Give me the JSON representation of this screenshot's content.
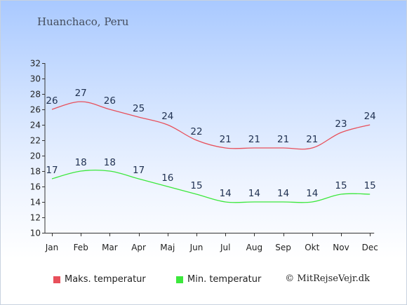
{
  "location": "Huanchaco, Peru",
  "credit": "© MitRejseVejr.dk",
  "colors": {
    "max": "#e8505b",
    "min": "#3ce83c"
  },
  "chart_data": {
    "type": "line",
    "categories": [
      "Jan",
      "Feb",
      "Mar",
      "Apr",
      "Maj",
      "Jun",
      "Jul",
      "Aug",
      "Sep",
      "Okt",
      "Nov",
      "Dec"
    ],
    "series": [
      {
        "name": "Maks. temperatur",
        "values": [
          26,
          27,
          26,
          25,
          24,
          22,
          21,
          21,
          21,
          21,
          23,
          24
        ]
      },
      {
        "name": "Min. temperatur",
        "values": [
          17,
          18,
          18,
          17,
          16,
          15,
          14,
          14,
          14,
          14,
          15,
          15
        ]
      }
    ],
    "yticks": [
      10,
      12,
      14,
      16,
      18,
      20,
      22,
      24,
      26,
      28,
      30,
      32
    ],
    "ylim": [
      10,
      32
    ],
    "grid": false,
    "legend_position": "bottom-left"
  }
}
